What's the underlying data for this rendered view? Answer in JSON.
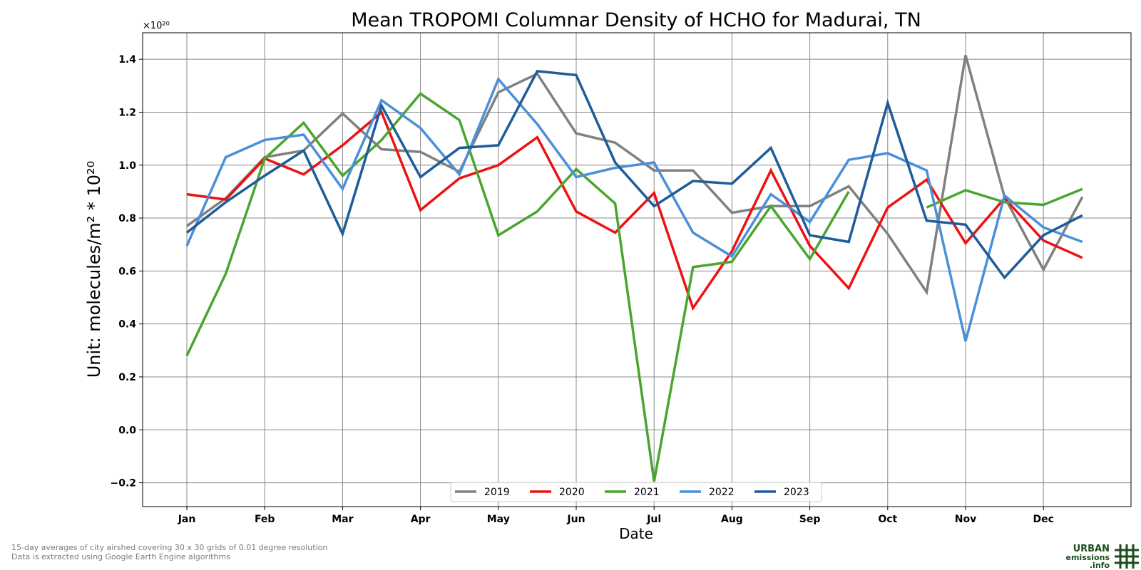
{
  "chart_data": {
    "type": "line",
    "title": "Mean TROPOMI Columnar Density of HCHO for Madurai, TN",
    "xlabel": "Date",
    "ylabel": "Unit: molecules/m² * 10²⁰",
    "y_offset_label": "×10²⁰",
    "ylim": [
      -0.29,
      1.5
    ],
    "yticks": [
      "−0.2",
      "0.0",
      "0.2",
      "0.4",
      "0.6",
      "0.8",
      "1.0",
      "1.2",
      "1.4"
    ],
    "ytick_values": [
      -0.2,
      0.0,
      0.2,
      0.4,
      0.6,
      0.8,
      1.0,
      1.2,
      1.4
    ],
    "month_labels": [
      "Jan",
      "Feb",
      "Mar",
      "Apr",
      "May",
      "Jun",
      "Jul",
      "Aug",
      "Sep",
      "Oct",
      "Nov",
      "Dec"
    ],
    "grid": true,
    "legend_position": "bottom-center",
    "x": [
      "Jan 1",
      "Jan 16",
      "Feb 1",
      "Feb 16",
      "Mar 1",
      "Mar 16",
      "Apr 1",
      "Apr 16",
      "May 1",
      "May 16",
      "Jun 1",
      "Jun 16",
      "Jul 1",
      "Jul 16",
      "Aug 1",
      "Aug 16",
      "Sep 1",
      "Sep 16",
      "Oct 1",
      "Oct 16",
      "Nov 1",
      "Nov 16",
      "Dec 1",
      "Dec 16"
    ],
    "series": [
      {
        "name": "2019",
        "color": "#808080",
        "values": [
          0.77,
          0.875,
          1.03,
          1.055,
          1.195,
          1.06,
          1.05,
          0.975,
          1.275,
          1.345,
          1.12,
          1.085,
          0.98,
          0.98,
          0.82,
          0.845,
          0.845,
          0.92,
          0.74,
          0.52,
          1.415,
          0.88,
          0.605,
          0.88
        ]
      },
      {
        "name": "2020",
        "color": "#ee1111",
        "values": [
          0.89,
          0.87,
          1.025,
          0.965,
          1.075,
          1.2,
          0.83,
          0.95,
          1.0,
          1.105,
          0.825,
          0.745,
          0.895,
          0.46,
          0.675,
          0.98,
          0.695,
          0.535,
          0.84,
          0.945,
          0.705,
          0.875,
          0.715,
          0.65
        ]
      },
      {
        "name": "2021",
        "color": "#4aa52e",
        "values": [
          0.28,
          0.59,
          1.025,
          1.16,
          0.96,
          1.095,
          1.27,
          1.17,
          0.735,
          0.825,
          0.985,
          0.855,
          -0.195,
          0.615,
          0.635,
          0.845,
          0.645,
          0.9,
          null,
          0.84,
          0.905,
          0.86,
          0.85,
          0.91
        ]
      },
      {
        "name": "2022",
        "color": "#4a90d9",
        "values": [
          0.695,
          1.03,
          1.095,
          1.115,
          0.91,
          1.245,
          1.14,
          0.965,
          1.325,
          1.155,
          0.955,
          0.99,
          1.01,
          0.745,
          0.655,
          0.89,
          0.785,
          1.02,
          1.045,
          0.98,
          0.335,
          0.885,
          0.765,
          0.71
        ]
      },
      {
        "name": "2023",
        "color": "#1f5c99",
        "values": [
          0.745,
          0.86,
          0.96,
          1.055,
          0.74,
          1.225,
          0.955,
          1.065,
          1.075,
          1.355,
          1.34,
          1.01,
          0.845,
          0.94,
          0.93,
          1.065,
          0.735,
          0.71,
          1.235,
          0.79,
          0.775,
          0.575,
          0.735,
          0.81
        ]
      }
    ]
  },
  "footnote_line1": "15-day averages of city airshed covering 30 x 30 grids of 0.01 degree resolution",
  "footnote_line2": "Data is extracted using Google Earth Engine algorithms",
  "logo": {
    "line1": "URBAN",
    "line2": "emissions",
    "line3": ".info",
    "color": "#1b4d1b"
  }
}
